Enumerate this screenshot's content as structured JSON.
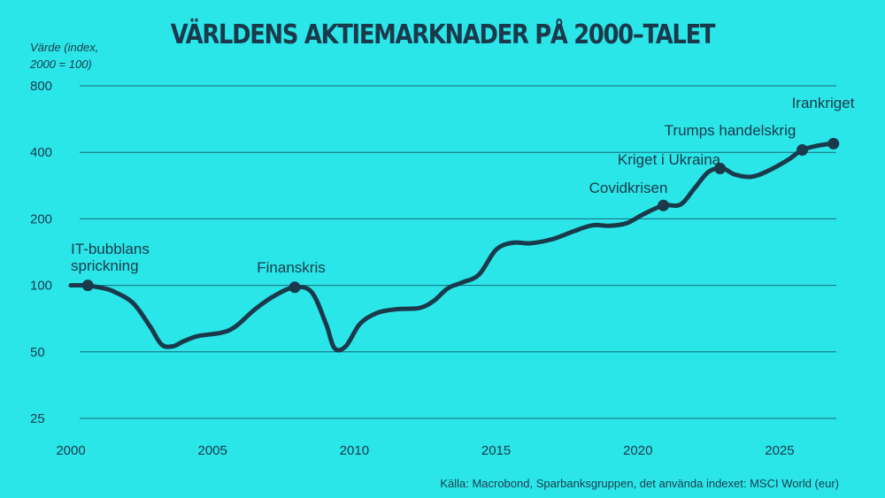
{
  "title": "VÄRLDENS AKTIEMARKNADER PÅ 2000–TALET",
  "ylabel_line1": "Värde (index,",
  "ylabel_line2": "2000 = 100)",
  "source": "Källa: Macrobond, Sparbanksgruppen, det använda indexet: MSCI World (eur)",
  "colors": {
    "background": "#2be6e8",
    "line": "#1a3a4c",
    "grid": "#1a6a7a"
  },
  "chart_data": {
    "type": "line",
    "yscale": "log",
    "ylim": [
      25,
      800
    ],
    "xlim": [
      2000,
      2027
    ],
    "yticks": [
      25,
      50,
      100,
      200,
      400,
      800
    ],
    "xticks": [
      2000,
      2005,
      2010,
      2015,
      2020,
      2025
    ],
    "grid": true,
    "series": [
      {
        "x": [
          2000,
          2000.5,
          2001,
          2001.5,
          2002.2,
          2002.8,
          2003.2,
          2003.6,
          2004,
          2004.5,
          2005.3,
          2005.8,
          2006.5,
          2007.2,
          2007.9,
          2008.5,
          2009,
          2009.3,
          2009.7,
          2010.2,
          2010.8,
          2011.5,
          2012.3,
          2012.8,
          2013.3,
          2013.8,
          2014.4,
          2015,
          2015.6,
          2016.2,
          2017,
          2017.7,
          2018.4,
          2019,
          2019.6,
          2020.2,
          2020.9,
          2021.5,
          2022,
          2022.5,
          2023,
          2023.4,
          2024,
          2024.6,
          2025.3,
          2025.8,
          2026.4,
          2026.9
        ],
        "y": [
          100,
          100,
          98,
          94,
          83,
          65,
          54,
          53,
          56,
          59,
          61,
          65,
          78,
          90,
          98,
          93,
          67,
          52,
          53,
          67,
          75,
          78,
          79,
          85,
          97,
          103,
          112,
          145,
          156,
          155,
          162,
          175,
          187,
          186,
          191,
          210,
          230,
          232,
          275,
          327,
          338,
          318,
          310,
          330,
          370,
          410,
          430,
          438
        ]
      }
    ],
    "annotations": [
      {
        "label": "IT-bubblans",
        "label2": "sprickning",
        "x": 2000.6,
        "y": 100
      },
      {
        "label": "Finanskris",
        "x": 2007.9,
        "y": 98
      },
      {
        "label": "Covidkrisen",
        "x": 2020.9,
        "y": 230
      },
      {
        "label": "Kriget i Ukraina",
        "x": 2022.9,
        "y": 338
      },
      {
        "label": "Trumps handelskrig",
        "x": 2025.8,
        "y": 410
      },
      {
        "label": "Irankriget",
        "x": 2026.9,
        "y": 438
      }
    ]
  }
}
